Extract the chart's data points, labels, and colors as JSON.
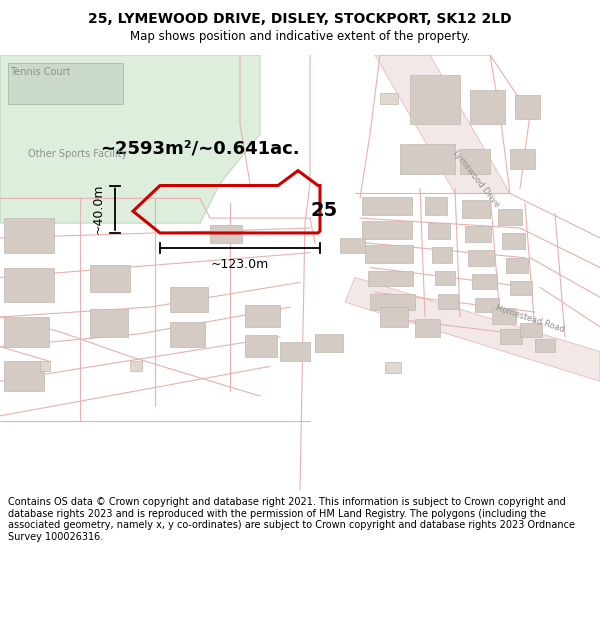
{
  "title_line1": "25, LYMEWOOD DRIVE, DISLEY, STOCKPORT, SK12 2LD",
  "title_line2": "Map shows position and indicative extent of the property.",
  "footer_text": "Contains OS data © Crown copyright and database right 2021. This information is subject to Crown copyright and database rights 2023 and is reproduced with the permission of HM Land Registry. The polygons (including the associated geometry, namely x, y co-ordinates) are subject to Crown copyright and database rights 2023 Ordnance Survey 100026316.",
  "area_text": "~2593m²/~0.641ac.",
  "width_text": "~123.0m",
  "height_text": "~40.0m",
  "label_25": "25",
  "map_bg": "#ffffff",
  "green_color": "#ddeedd",
  "green_edge": "#c0d8c0",
  "road_fill": "#f5eded",
  "boundary_color": "#e8b0b0",
  "boundary_lw": 0.8,
  "building_color": "#d4ccc4",
  "building_edge": "#c0b8b0",
  "property_color": "#cc0000",
  "property_lw": 2.2,
  "dim_color": "#000000",
  "title_color": "#000000",
  "footer_color": "#000000",
  "text_label_color": "#909090",
  "road_label_color": "#909090"
}
